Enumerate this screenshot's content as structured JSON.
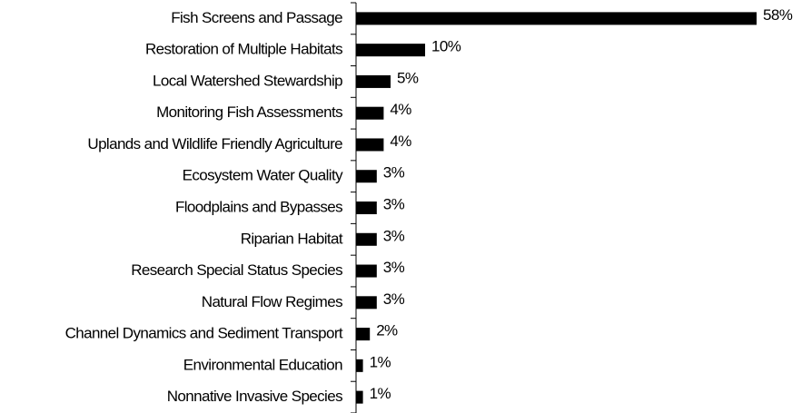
{
  "chart_data": {
    "type": "bar",
    "orientation": "horizontal",
    "categories": [
      "Fish Screens and Passage",
      "Restoration of Multiple Habitats",
      "Local Watershed Stewardship",
      "Monitoring Fish Assessments",
      "Uplands and Wildlife Friendly Agriculture",
      "Ecosystem Water Quality",
      "Floodplains and Bypasses",
      "Riparian Habitat",
      "Research Special Status Species",
      "Natural Flow Regimes",
      "Channel Dynamics and Sediment Transport",
      "Environmental Education",
      "Nonnative Invasive Species"
    ],
    "values": [
      58,
      10,
      5,
      4,
      4,
      3,
      3,
      3,
      3,
      3,
      2,
      1,
      1
    ],
    "value_labels": [
      "58%",
      "10%",
      "5%",
      "4%",
      "4%",
      "3%",
      "3%",
      "3%",
      "3%",
      "3%",
      "2%",
      "1%",
      "1%"
    ],
    "color": "#000000"
  }
}
